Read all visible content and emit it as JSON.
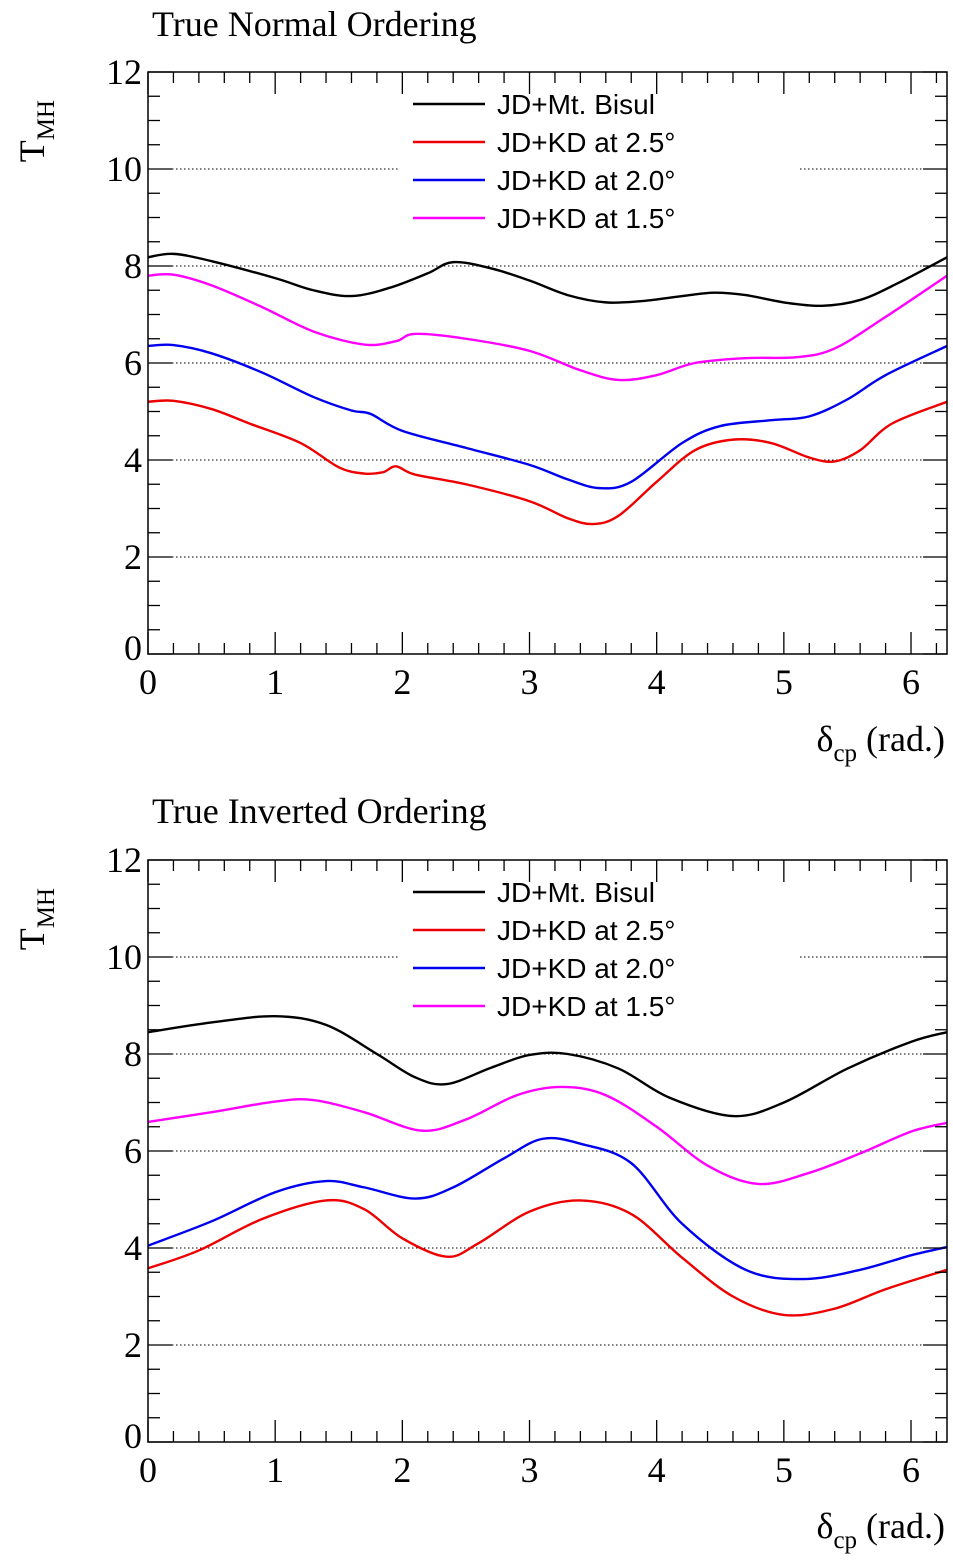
{
  "chart_data": [
    {
      "type": "line",
      "title": "True Normal Ordering",
      "xlabel": "δ",
      "xlabel_sub": "cp",
      "xlabel_unit": "(rad.)",
      "ylabel": "T",
      "ylabel_sub": "MH",
      "xlim": [
        0,
        6.283
      ],
      "ylim": [
        0,
        12
      ],
      "x_ticks": [
        "0",
        "1",
        "2",
        "3",
        "4",
        "5",
        "6"
      ],
      "y_ticks": [
        "0",
        "2",
        "4",
        "6",
        "8",
        "10",
        "12"
      ],
      "grid": "horizontal dotted",
      "legend_position": "top-center",
      "series": [
        {
          "name": "JD+Mt. Bisul",
          "color": "#000000",
          "points": [
            [
              0,
              8.18
            ],
            [
              0.2,
              8.25
            ],
            [
              0.5,
              8.1
            ],
            [
              1.0,
              7.75
            ],
            [
              1.3,
              7.5
            ],
            [
              1.6,
              7.38
            ],
            [
              1.9,
              7.55
            ],
            [
              2.2,
              7.85
            ],
            [
              2.4,
              8.08
            ],
            [
              2.7,
              7.95
            ],
            [
              3.0,
              7.7
            ],
            [
              3.3,
              7.4
            ],
            [
              3.6,
              7.25
            ],
            [
              3.9,
              7.28
            ],
            [
              4.2,
              7.38
            ],
            [
              4.45,
              7.45
            ],
            [
              4.7,
              7.4
            ],
            [
              5.0,
              7.25
            ],
            [
              5.3,
              7.18
            ],
            [
              5.6,
              7.3
            ],
            [
              5.9,
              7.65
            ],
            [
              6.283,
              8.18
            ]
          ]
        },
        {
          "name": "JD+KD at 2.5°",
          "color": "#ee0000",
          "points": [
            [
              0,
              5.2
            ],
            [
              0.2,
              5.22
            ],
            [
              0.5,
              5.05
            ],
            [
              0.8,
              4.75
            ],
            [
              1.2,
              4.35
            ],
            [
              1.5,
              3.85
            ],
            [
              1.7,
              3.72
            ],
            [
              1.85,
              3.75
            ],
            [
              1.95,
              3.87
            ],
            [
              2.1,
              3.7
            ],
            [
              2.5,
              3.5
            ],
            [
              3.0,
              3.15
            ],
            [
              3.3,
              2.8
            ],
            [
              3.5,
              2.68
            ],
            [
              3.7,
              2.85
            ],
            [
              4.0,
              3.55
            ],
            [
              4.3,
              4.2
            ],
            [
              4.6,
              4.42
            ],
            [
              4.9,
              4.35
            ],
            [
              5.2,
              4.05
            ],
            [
              5.4,
              3.97
            ],
            [
              5.6,
              4.2
            ],
            [
              5.85,
              4.75
            ],
            [
              6.283,
              5.2
            ]
          ]
        },
        {
          "name": "JD+KD at 2.0°",
          "color": "#0000ee",
          "points": [
            [
              0,
              6.35
            ],
            [
              0.2,
              6.37
            ],
            [
              0.5,
              6.2
            ],
            [
              0.9,
              5.8
            ],
            [
              1.3,
              5.3
            ],
            [
              1.6,
              5.02
            ],
            [
              1.75,
              4.95
            ],
            [
              2.0,
              4.6
            ],
            [
              2.5,
              4.25
            ],
            [
              3.0,
              3.9
            ],
            [
              3.3,
              3.6
            ],
            [
              3.55,
              3.42
            ],
            [
              3.8,
              3.55
            ],
            [
              4.2,
              4.35
            ],
            [
              4.5,
              4.7
            ],
            [
              4.9,
              4.82
            ],
            [
              5.2,
              4.9
            ],
            [
              5.5,
              5.25
            ],
            [
              5.8,
              5.75
            ],
            [
              6.283,
              6.35
            ]
          ]
        },
        {
          "name": "JD+KD at 1.5°",
          "color": "#ff00ff",
          "points": [
            [
              0,
              7.8
            ],
            [
              0.2,
              7.82
            ],
            [
              0.5,
              7.6
            ],
            [
              0.9,
              7.15
            ],
            [
              1.3,
              6.65
            ],
            [
              1.7,
              6.38
            ],
            [
              1.95,
              6.45
            ],
            [
              2.1,
              6.6
            ],
            [
              2.5,
              6.5
            ],
            [
              3.0,
              6.25
            ],
            [
              3.4,
              5.85
            ],
            [
              3.7,
              5.65
            ],
            [
              4.0,
              5.75
            ],
            [
              4.3,
              6.0
            ],
            [
              4.7,
              6.1
            ],
            [
              5.1,
              6.12
            ],
            [
              5.4,
              6.3
            ],
            [
              5.8,
              6.95
            ],
            [
              6.283,
              7.8
            ]
          ]
        }
      ]
    },
    {
      "type": "line",
      "title": "True Inverted Ordering",
      "xlabel": "δ",
      "xlabel_sub": "cp",
      "xlabel_unit": "(rad.)",
      "ylabel": "T",
      "ylabel_sub": "MH",
      "xlim": [
        0,
        6.283
      ],
      "ylim": [
        0,
        12
      ],
      "x_ticks": [
        "0",
        "1",
        "2",
        "3",
        "4",
        "5",
        "6"
      ],
      "y_ticks": [
        "0",
        "2",
        "4",
        "6",
        "8",
        "10",
        "12"
      ],
      "grid": "horizontal dotted",
      "legend_position": "top-center",
      "series": [
        {
          "name": "JD+Mt. Bisul",
          "color": "#000000",
          "points": [
            [
              0,
              8.45
            ],
            [
              0.5,
              8.65
            ],
            [
              1.0,
              8.78
            ],
            [
              1.4,
              8.6
            ],
            [
              1.8,
              8.0
            ],
            [
              2.1,
              7.52
            ],
            [
              2.35,
              7.38
            ],
            [
              2.7,
              7.72
            ],
            [
              3.0,
              7.98
            ],
            [
              3.3,
              8.0
            ],
            [
              3.7,
              7.7
            ],
            [
              4.1,
              7.1
            ],
            [
              4.6,
              6.72
            ],
            [
              5.0,
              7.0
            ],
            [
              5.5,
              7.7
            ],
            [
              6.0,
              8.25
            ],
            [
              6.283,
              8.45
            ]
          ]
        },
        {
          "name": "JD+KD at 2.5°",
          "color": "#ee0000",
          "points": [
            [
              0,
              3.58
            ],
            [
              0.4,
              3.95
            ],
            [
              0.9,
              4.6
            ],
            [
              1.4,
              4.98
            ],
            [
              1.7,
              4.8
            ],
            [
              2.0,
              4.2
            ],
            [
              2.35,
              3.82
            ],
            [
              2.6,
              4.1
            ],
            [
              3.0,
              4.75
            ],
            [
              3.4,
              4.98
            ],
            [
              3.8,
              4.7
            ],
            [
              4.2,
              3.8
            ],
            [
              4.6,
              3.0
            ],
            [
              5.0,
              2.62
            ],
            [
              5.4,
              2.75
            ],
            [
              5.8,
              3.15
            ],
            [
              6.283,
              3.55
            ]
          ]
        },
        {
          "name": "JD+KD at 2.0°",
          "color": "#0000ee",
          "points": [
            [
              0,
              4.05
            ],
            [
              0.5,
              4.55
            ],
            [
              1.0,
              5.15
            ],
            [
              1.4,
              5.38
            ],
            [
              1.7,
              5.25
            ],
            [
              2.1,
              5.02
            ],
            [
              2.4,
              5.25
            ],
            [
              2.8,
              5.85
            ],
            [
              3.1,
              6.25
            ],
            [
              3.4,
              6.15
            ],
            [
              3.8,
              5.75
            ],
            [
              4.2,
              4.5
            ],
            [
              4.7,
              3.55
            ],
            [
              5.15,
              3.36
            ],
            [
              5.6,
              3.55
            ],
            [
              6.0,
              3.85
            ],
            [
              6.283,
              4.02
            ]
          ]
        },
        {
          "name": "JD+KD at 1.5°",
          "color": "#ff00ff",
          "points": [
            [
              0,
              6.6
            ],
            [
              0.5,
              6.8
            ],
            [
              1.0,
              7.02
            ],
            [
              1.3,
              7.05
            ],
            [
              1.7,
              6.8
            ],
            [
              2.15,
              6.42
            ],
            [
              2.5,
              6.65
            ],
            [
              2.9,
              7.15
            ],
            [
              3.25,
              7.32
            ],
            [
              3.6,
              7.15
            ],
            [
              4.0,
              6.5
            ],
            [
              4.4,
              5.7
            ],
            [
              4.8,
              5.32
            ],
            [
              5.2,
              5.55
            ],
            [
              5.6,
              5.95
            ],
            [
              6.0,
              6.4
            ],
            [
              6.283,
              6.58
            ]
          ]
        }
      ]
    }
  ]
}
